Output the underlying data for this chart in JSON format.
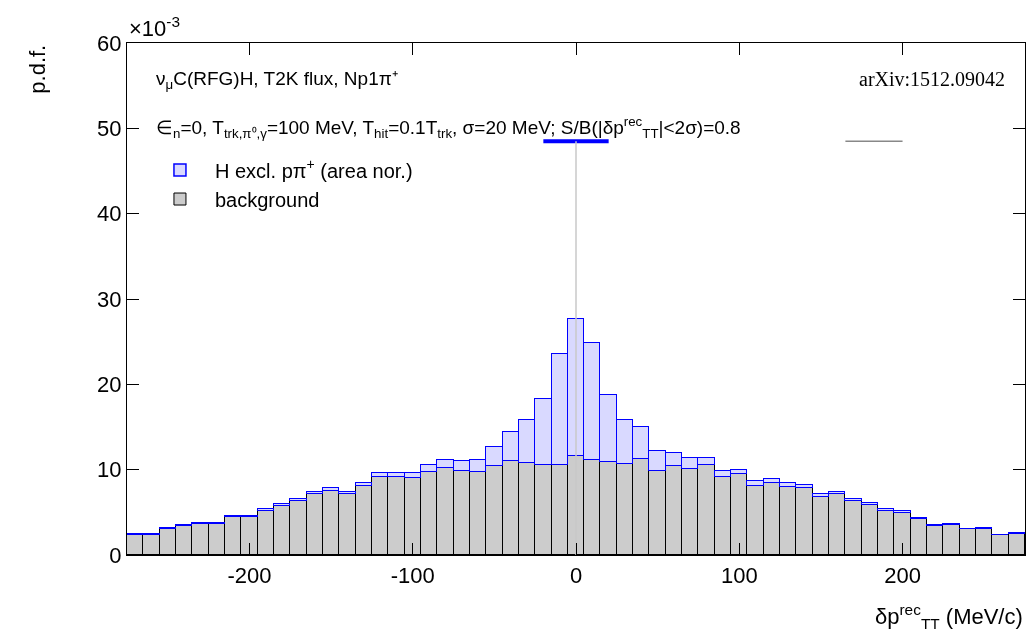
{
  "chart_data": {
    "type": "bar",
    "xlabel": "δp$^{rec}$$_{TT}$ (MeV/c)",
    "ylabel": "p.d.f.",
    "annotations": [
      "×10$^{-3}$",
      "ν$_{μ}$C(RFG)H, T2K flux, Np1π⁺",
      "∈$_{n}$=0, T$_{trk,π⁰,γ}$=100 MeV, T$_{hit}$=0.1T$_{trk}$, σ=20 MeV; S/B(|δp$^{rec}$$_{TT}$|<2σ)=0.8",
      "arXiv:1512.09042"
    ],
    "x": [
      -270,
      -260,
      -250,
      -240,
      -230,
      -220,
      -210,
      -200,
      -190,
      -180,
      -170,
      -160,
      -150,
      -140,
      -130,
      -120,
      -110,
      -100,
      -90,
      -80,
      -70,
      -60,
      -50,
      -40,
      -30,
      -20,
      -10,
      0,
      10,
      20,
      30,
      40,
      50,
      60,
      70,
      80,
      90,
      100,
      110,
      120,
      130,
      140,
      150,
      160,
      170,
      180,
      190,
      200,
      210,
      220,
      230,
      240,
      250,
      260,
      270
    ],
    "stacked": true,
    "series": [
      {
        "name": "background",
        "color": "#cccccc",
        "values": [
          2.4,
          2.4,
          3.1,
          3.4,
          3.6,
          3.6,
          4.5,
          4.5,
          5.2,
          5.7,
          6.3,
          7.2,
          7.5,
          7.1,
          8.1,
          9.1,
          9.1,
          9.0,
          9.7,
          10.2,
          9.9,
          9.7,
          10.4,
          11.0,
          10.8,
          10.5,
          10.5,
          11.6,
          11.1,
          10.9,
          10.7,
          11.3,
          9.9,
          10.4,
          10.1,
          10.6,
          9.1,
          9.5,
          8.1,
          8.4,
          8.0,
          7.8,
          6.8,
          7.2,
          6.3,
          5.9,
          5.2,
          4.9,
          4.2,
          3.4,
          3.5,
          3.0,
          3.1,
          2.3,
          2.5
        ]
      },
      {
        "name": "H excl. pπ$^{+}$ (area nor.)",
        "color": "#0000ff",
        "values": [
          0.1,
          0.1,
          0.1,
          0.1,
          0.2,
          0.1,
          0.1,
          0.1,
          0.2,
          0.3,
          0.3,
          0.2,
          0.4,
          0.3,
          0.3,
          0.5,
          0.5,
          0.6,
          0.8,
          0.9,
          1.1,
          1.4,
          2.3,
          3.4,
          5.0,
          7.8,
          13.0,
          16.1,
          13.7,
          7.9,
          5.1,
          3.7,
          2.3,
          1.5,
          1.3,
          0.8,
          0.8,
          0.5,
          0.6,
          0.5,
          0.4,
          0.4,
          0.3,
          0.2,
          0.3,
          0.2,
          0.2,
          0.2,
          0.1,
          0.1,
          0.1,
          0.1,
          0.1,
          0.1,
          0.1
        ]
      },
      {
        "type": "line",
        "color": "#0000ff",
        "x": [
          -20,
          20
        ],
        "values": [
          48.5,
          48.5
        ]
      },
      {
        "type": "line",
        "color": "#888888",
        "x": [
          165,
          200
        ],
        "values": [
          48.5,
          48.5
        ]
      },
      {
        "type": "line",
        "color": "#c8c8c8",
        "x": [
          0,
          0
        ],
        "values": [
          0,
          48.5
        ]
      }
    ],
    "xlim": [
      -275,
      275
    ],
    "xticks": [
      -200,
      -100,
      0,
      100,
      200
    ],
    "ylim": [
      0,
      60
    ],
    "yticks": [
      0,
      10,
      20,
      30,
      40,
      50,
      60
    ],
    "legend": "top left"
  }
}
